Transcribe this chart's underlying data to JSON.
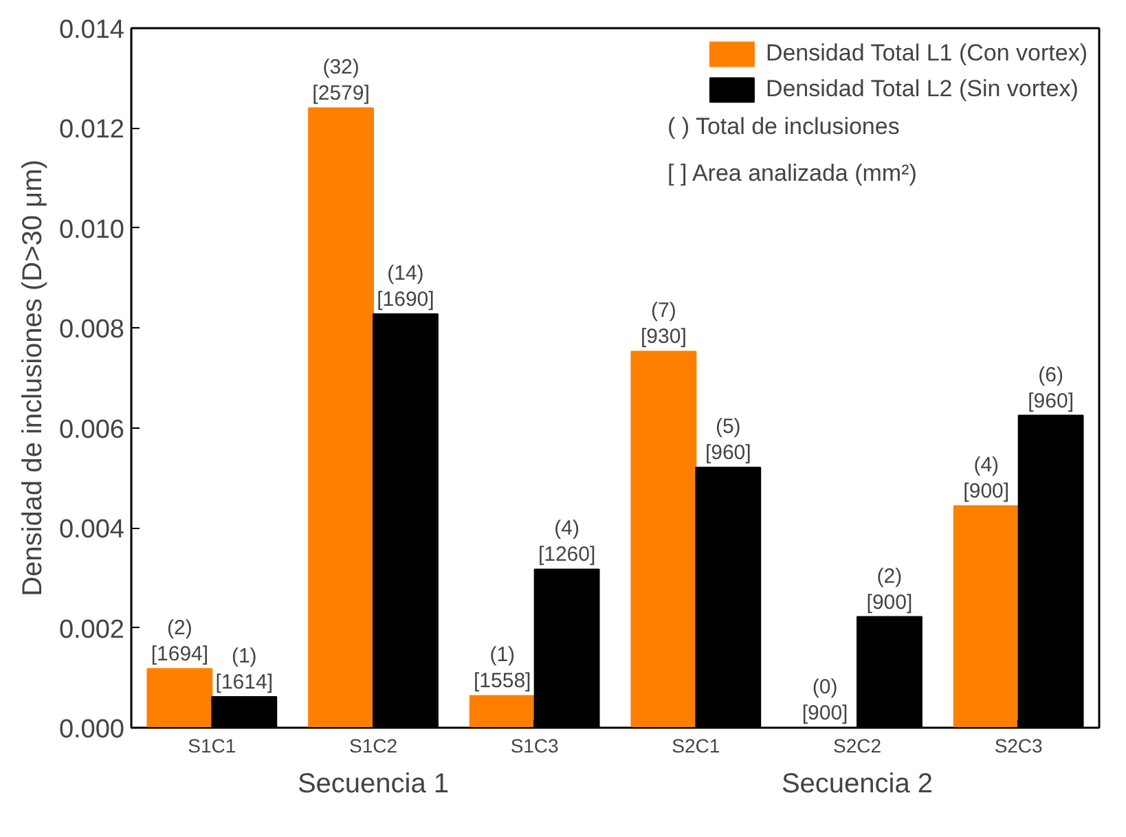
{
  "chart_data": {
    "type": "bar",
    "ylabel": "Densidad de inclusiones (D>30 μm)",
    "categories": [
      "S1C1",
      "S1C2",
      "S1C3",
      "S2C1",
      "S2C2",
      "S2C3"
    ],
    "series": [
      {
        "name": "Densidad Total L1 (Con vortex)",
        "color": "#ff7f00",
        "values": [
          0.00118,
          0.0124,
          0.00064,
          0.00753,
          0,
          0.00444
        ],
        "value_labels": [
          "(2)\n[1694]",
          "(32)\n[2579]",
          "(1)\n[1558]",
          "(7)\n[930]",
          "(0)\n[900]",
          "(4)\n[900]"
        ]
      },
      {
        "name": "Densidad Total L2 (Sin vortex)",
        "color": "#000000",
        "values": [
          0.00062,
          0.00828,
          0.00317,
          0.00521,
          0.00222,
          0.00625
        ],
        "value_labels": [
          "(1)\n[1614]",
          "(14)\n[1690]",
          "(4)\n[1260]",
          "(5)\n[960]",
          "(2)\n[900]",
          "(6)\n[960]"
        ]
      }
    ],
    "ylim": [
      0,
      0.014
    ],
    "yticks": [
      {
        "value": 0,
        "label": "0.000"
      },
      {
        "value": 0.002,
        "label": "0.002"
      },
      {
        "value": 0.004,
        "label": "0.004"
      },
      {
        "value": 0.006,
        "label": "0.006"
      },
      {
        "value": 0.008,
        "label": "0.008"
      },
      {
        "value": 0.01,
        "label": "0.010"
      },
      {
        "value": 0.012,
        "label": "0.012"
      },
      {
        "value": 0.014,
        "label": "0.014"
      }
    ],
    "grid": false,
    "legend": "top right",
    "annotations": [
      "( ) Total de inclusiones",
      "[ ] Area analizada (mm²)",
      "Secuencia 1",
      "Secuencia 2"
    ]
  }
}
